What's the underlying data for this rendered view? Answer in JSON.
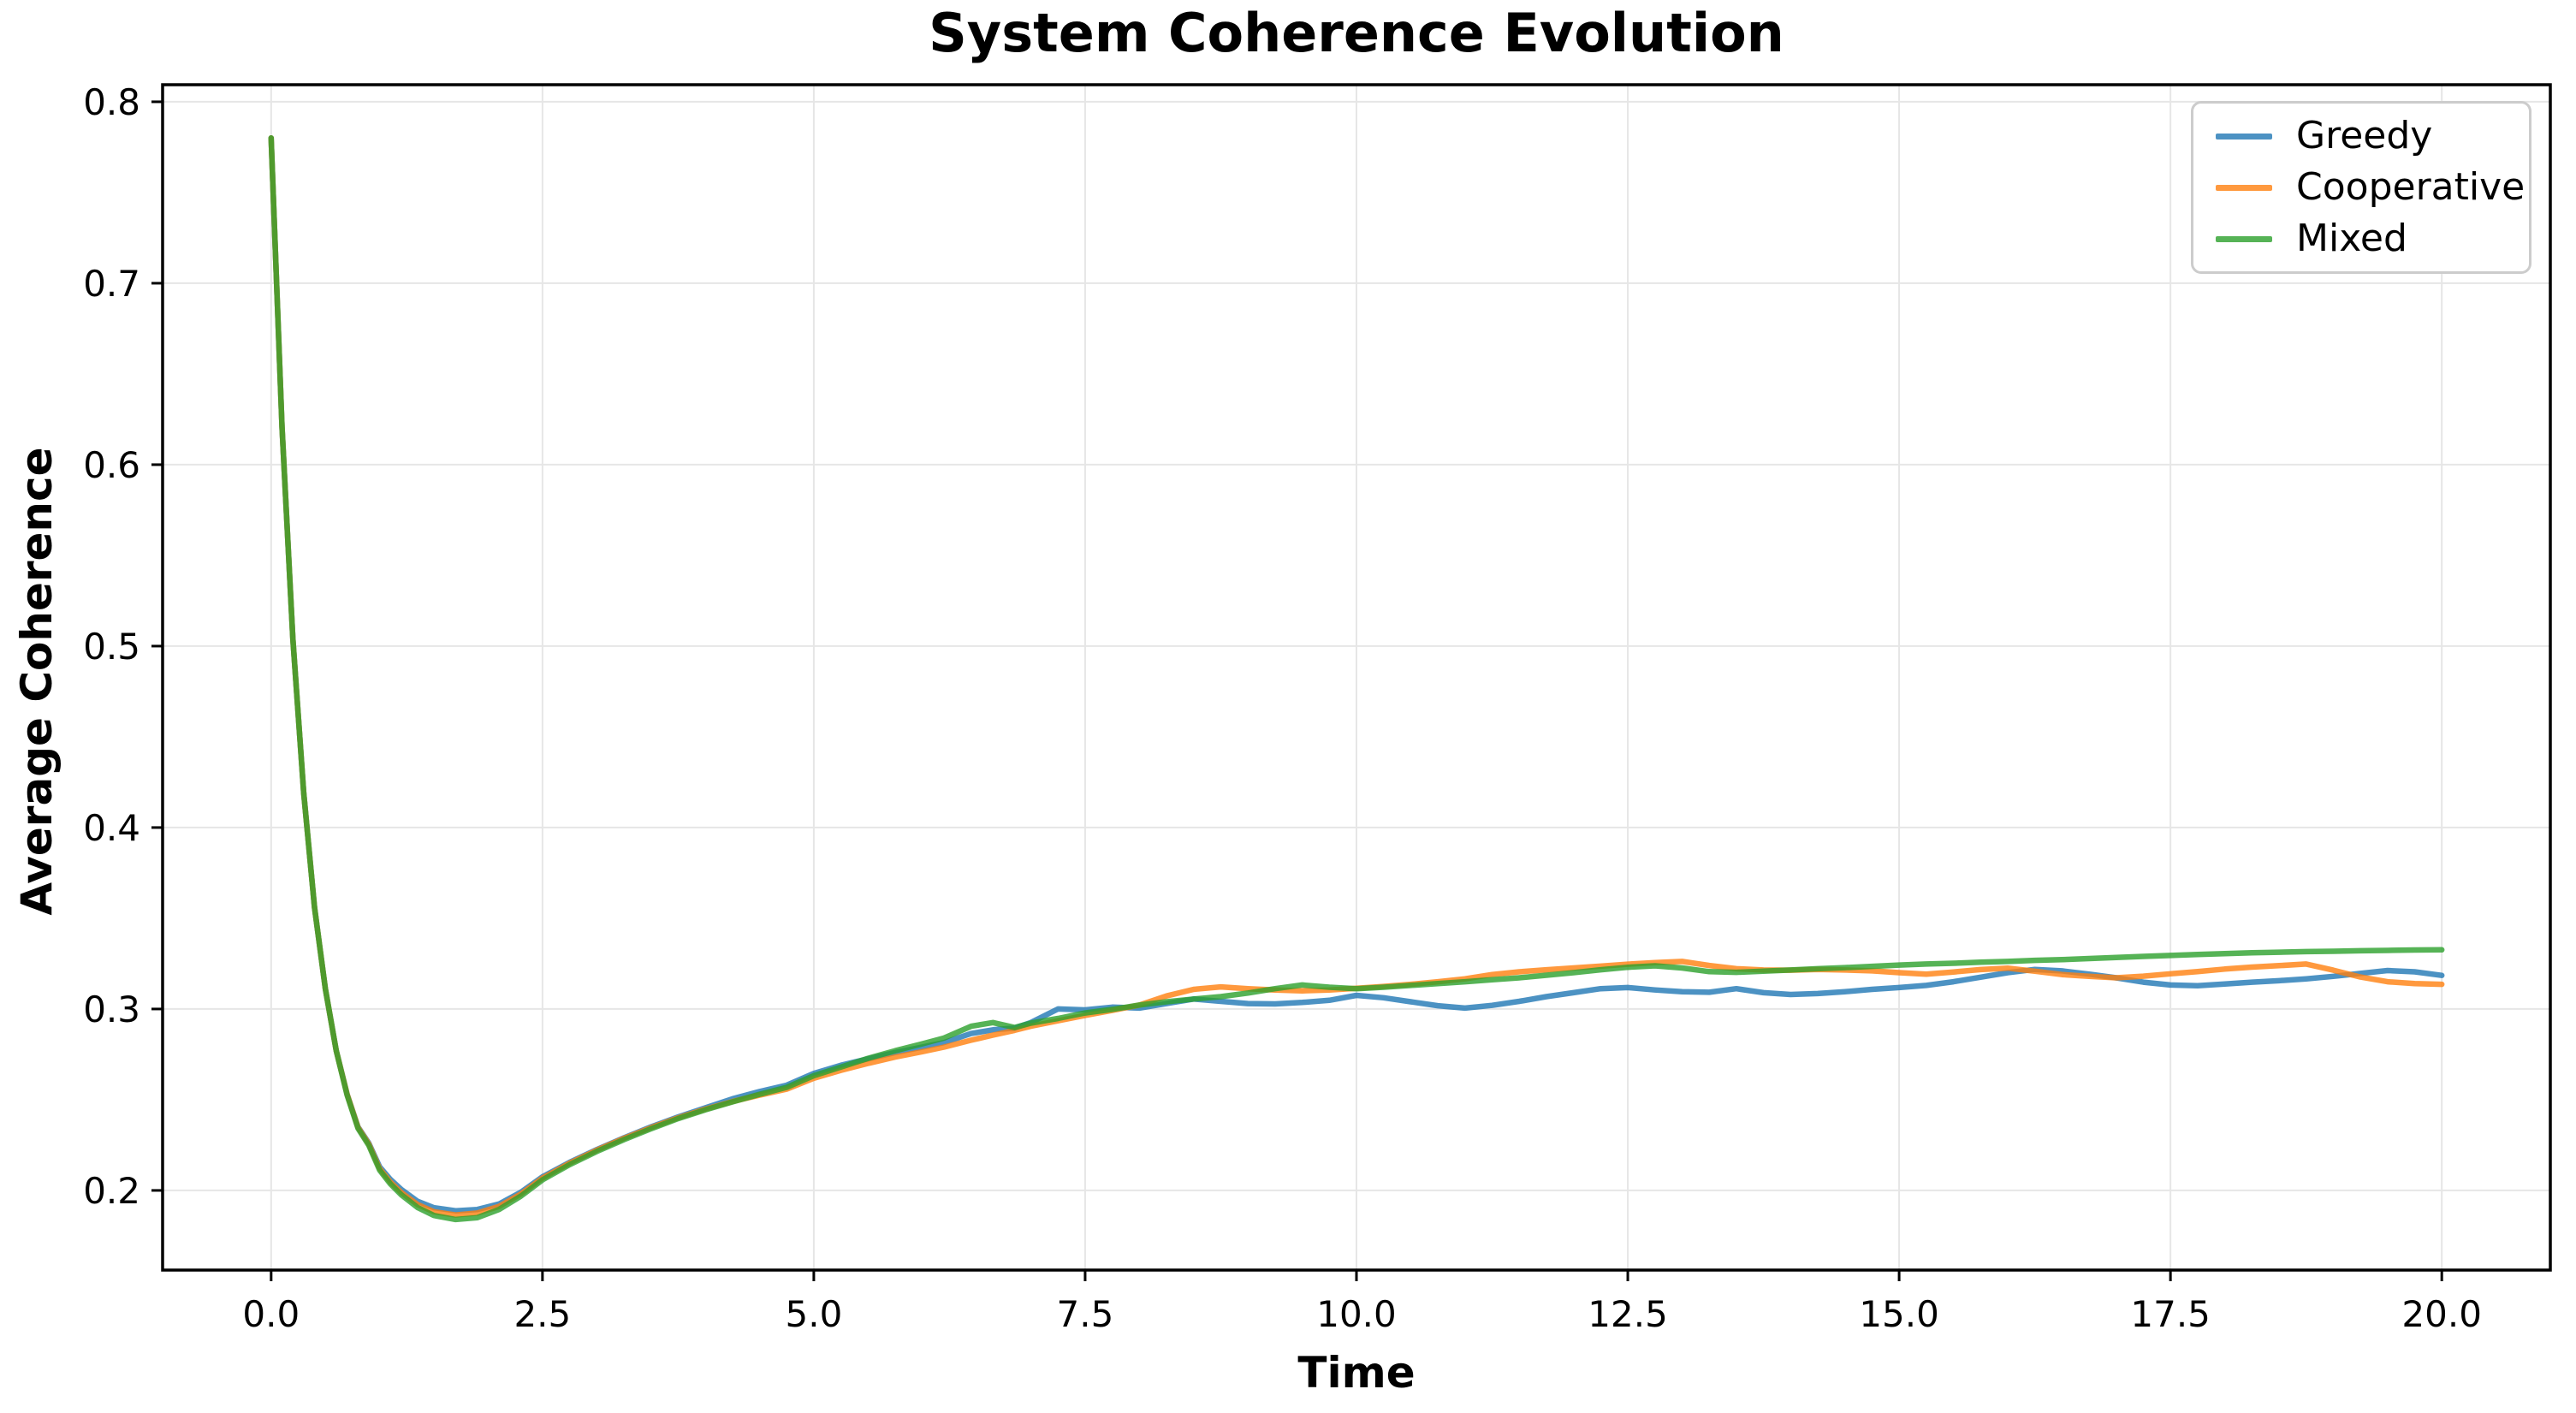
{
  "figure": {
    "title": "System Coherence Evolution",
    "xlabel": "Time",
    "ylabel": "Average Coherence",
    "background_color": "#ffffff"
  },
  "chart_data": {
    "type": "line",
    "title": "System Coherence Evolution",
    "xlabel": "Time",
    "ylabel": "Average Coherence",
    "grid": true,
    "grid_color": "#e6e6e6",
    "spine_color": "#000000",
    "line_opacity": 0.8,
    "line_width": 6.5,
    "xlim": [
      -1.0,
      21.0
    ],
    "ylim": [
      0.1561,
      0.8094
    ],
    "xticks": {
      "values": [
        0,
        2.5,
        5,
        7.5,
        10,
        12.5,
        15,
        17.5,
        20
      ],
      "labels": [
        "0.0",
        "2.5",
        "5.0",
        "7.5",
        "10.0",
        "12.5",
        "15.0",
        "17.5",
        "20.0"
      ]
    },
    "yticks": {
      "values": [
        0.2,
        0.3,
        0.4,
        0.5,
        0.6,
        0.7,
        0.8
      ],
      "labels": [
        "0.2",
        "0.3",
        "0.4",
        "0.5",
        "0.6",
        "0.7",
        "0.8"
      ]
    },
    "legend": {
      "position": "upper-right",
      "entries": [
        "Greedy",
        "Cooperative",
        "Mixed"
      ]
    },
    "x": [
      0,
      0.1,
      0.2,
      0.3,
      0.4,
      0.5,
      0.6,
      0.7,
      0.8,
      0.9,
      1.0,
      1.1,
      1.2,
      1.35,
      1.5,
      1.7,
      1.9,
      2.1,
      2.3,
      2.5,
      2.75,
      3.0,
      3.25,
      3.5,
      3.75,
      4.0,
      4.25,
      4.5,
      4.75,
      5.0,
      5.25,
      5.5,
      5.75,
      6.0,
      6.2,
      6.45,
      6.65,
      6.85,
      7.0,
      7.25,
      7.5,
      7.75,
      8.0,
      8.25,
      8.5,
      8.75,
      9.0,
      9.25,
      9.5,
      9.75,
      10.0,
      10.25,
      10.5,
      10.75,
      11.0,
      11.25,
      11.5,
      11.75,
      12.0,
      12.25,
      12.5,
      12.75,
      13.0,
      13.25,
      13.5,
      13.75,
      14.0,
      14.25,
      14.5,
      14.75,
      15.0,
      15.25,
      15.5,
      15.75,
      16.0,
      16.25,
      16.5,
      16.75,
      17.0,
      17.25,
      17.5,
      17.75,
      18.0,
      18.25,
      18.5,
      18.75,
      19.0,
      19.25,
      19.5,
      19.75,
      20.0
    ],
    "series": [
      {
        "name": "Greedy",
        "color": "#1f77b4",
        "values": [
          0.78,
          0.621,
          0.504,
          0.419,
          0.356,
          0.311,
          0.277,
          0.253,
          0.235,
          0.226,
          0.213,
          0.206,
          0.2005,
          0.194,
          0.1905,
          0.1888,
          0.1895,
          0.1925,
          0.199,
          0.2075,
          0.2155,
          0.2225,
          0.229,
          0.235,
          0.2405,
          0.2455,
          0.2505,
          0.2545,
          0.258,
          0.2645,
          0.269,
          0.2725,
          0.276,
          0.279,
          0.2815,
          0.2865,
          0.2885,
          0.2895,
          0.2925,
          0.3,
          0.2995,
          0.301,
          0.3005,
          0.303,
          0.3055,
          0.3042,
          0.303,
          0.3028,
          0.3036,
          0.3048,
          0.3075,
          0.3062,
          0.304,
          0.3018,
          0.3005,
          0.302,
          0.3042,
          0.3068,
          0.309,
          0.3112,
          0.3118,
          0.3105,
          0.3095,
          0.3092,
          0.3112,
          0.309,
          0.308,
          0.3085,
          0.3095,
          0.3108,
          0.3118,
          0.313,
          0.315,
          0.3175,
          0.32,
          0.3218,
          0.321,
          0.3192,
          0.3172,
          0.3148,
          0.3132,
          0.3128,
          0.3138,
          0.3148,
          0.3156,
          0.3166,
          0.318,
          0.3196,
          0.3212,
          0.3205,
          0.3185
        ]
      },
      {
        "name": "Cooperative",
        "color": "#ff7f0e",
        "values": [
          0.78,
          0.621,
          0.504,
          0.419,
          0.356,
          0.311,
          0.277,
          0.253,
          0.2348,
          0.2255,
          0.212,
          0.2045,
          0.1988,
          0.1922,
          0.1882,
          0.1865,
          0.1875,
          0.1912,
          0.198,
          0.2068,
          0.215,
          0.2222,
          0.2287,
          0.2346,
          0.24,
          0.2448,
          0.249,
          0.2525,
          0.2558,
          0.2618,
          0.2662,
          0.27,
          0.2735,
          0.2765,
          0.279,
          0.2828,
          0.2856,
          0.2882,
          0.2905,
          0.2935,
          0.2965,
          0.2992,
          0.3022,
          0.3072,
          0.3108,
          0.3122,
          0.3112,
          0.3105,
          0.31,
          0.3105,
          0.3114,
          0.3124,
          0.3136,
          0.315,
          0.3166,
          0.319,
          0.3205,
          0.3216,
          0.3226,
          0.3236,
          0.3247,
          0.3256,
          0.3262,
          0.324,
          0.3222,
          0.3215,
          0.3214,
          0.3218,
          0.3215,
          0.321,
          0.32,
          0.3192,
          0.3204,
          0.3217,
          0.3225,
          0.3208,
          0.319,
          0.318,
          0.3172,
          0.3181,
          0.3194,
          0.3206,
          0.322,
          0.3231,
          0.3239,
          0.3248,
          0.3214,
          0.3176,
          0.315,
          0.314,
          0.3136
        ]
      },
      {
        "name": "Mixed",
        "color": "#2ca02c",
        "values": [
          0.78,
          0.621,
          0.504,
          0.419,
          0.356,
          0.311,
          0.277,
          0.2525,
          0.2342,
          0.2248,
          0.2112,
          0.2035,
          0.1975,
          0.1906,
          0.1862,
          0.184,
          0.185,
          0.1895,
          0.1968,
          0.2058,
          0.2142,
          0.2215,
          0.228,
          0.234,
          0.2396,
          0.2444,
          0.2488,
          0.253,
          0.2568,
          0.2632,
          0.268,
          0.2728,
          0.277,
          0.2808,
          0.284,
          0.2905,
          0.2925,
          0.2898,
          0.2922,
          0.2948,
          0.2978,
          0.2998,
          0.3022,
          0.304,
          0.3055,
          0.3068,
          0.3088,
          0.3112,
          0.3132,
          0.312,
          0.3112,
          0.312,
          0.313,
          0.314,
          0.315,
          0.3161,
          0.3172,
          0.3186,
          0.32,
          0.3216,
          0.323,
          0.3238,
          0.3226,
          0.3206,
          0.3202,
          0.3208,
          0.3215,
          0.3222,
          0.3228,
          0.3235,
          0.3242,
          0.3248,
          0.3252,
          0.3258,
          0.3262,
          0.3268,
          0.3272,
          0.3278,
          0.3284,
          0.329,
          0.3295,
          0.33,
          0.3305,
          0.331,
          0.3313,
          0.3316,
          0.3318,
          0.3321,
          0.3323,
          0.3325,
          0.3326
        ]
      }
    ]
  }
}
